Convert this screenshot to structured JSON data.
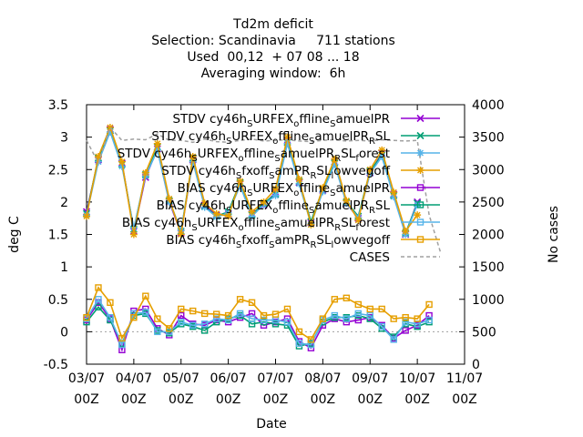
{
  "chart_data": {
    "type": "line",
    "title_lines": [
      "Td2m deficit",
      "Selection: Scandinavia     711 stations",
      "Used  00,12  + 07 08 ... 18",
      "Averaging window:  6h"
    ],
    "xlabel": "Date",
    "ylabel": "deg C",
    "y2label": "No cases",
    "ylim": [
      -0.5,
      3.5
    ],
    "y2lim": [
      0,
      4000
    ],
    "yticks": [
      "-0.5",
      "0",
      "0.5",
      "1",
      "1.5",
      "2",
      "2.5",
      "3",
      "3.5"
    ],
    "y2ticks": [
      "0",
      "500",
      "1000",
      "1500",
      "2000",
      "2500",
      "3000",
      "3500",
      "4000"
    ],
    "xlim": [
      0,
      8
    ],
    "xtick_lines": [
      [
        "03/07",
        "00Z"
      ],
      [
        "04/07",
        "00Z"
      ],
      [
        "05/07",
        "00Z"
      ],
      [
        "06/07",
        "00Z"
      ],
      [
        "07/07",
        "00Z"
      ],
      [
        "08/07",
        "00Z"
      ],
      [
        "09/07",
        "00Z"
      ],
      [
        "10/07",
        "00Z"
      ],
      [
        "11/07",
        "00Z"
      ]
    ],
    "x": [
      0,
      0.25,
      0.5,
      0.75,
      1,
      1.25,
      1.5,
      1.75,
      2,
      2.25,
      2.5,
      2.75,
      3,
      3.25,
      3.5,
      3.75,
      4,
      4.25,
      4.5,
      4.75,
      5,
      5.25,
      5.5,
      5.75,
      6,
      6.25,
      6.5,
      6.75,
      7,
      7.25,
      7.5
    ],
    "legend_position": "top-right",
    "series": [
      {
        "legend": [
          "STDV cy46h",
          "S",
          "URFEX",
          "o",
          "ffline",
          "S",
          "amuelPR"
        ],
        "marker": "x",
        "color": "#9400d3",
        "dash": "solid",
        "values": [
          1.85,
          2.65,
          3.12,
          2.6,
          1.55,
          2.38,
          2.82,
          2.0,
          1.52,
          2.65,
          1.95,
          1.8,
          1.82,
          2.28,
          1.82,
          1.95,
          2.15,
          2.95,
          2.3,
          1.68,
          2.18,
          2.62,
          1.98,
          1.75,
          2.45,
          2.75,
          2.12,
          1.5,
          2.0,
          null,
          null
        ]
      },
      {
        "legend": [
          "STDV cy46h",
          "S",
          "URFEX",
          "o",
          "ffline",
          "S",
          "amuelPR",
          "R",
          "SL"
        ],
        "marker": "x",
        "color": "#009e73",
        "dash": "solid",
        "values": [
          1.82,
          2.68,
          3.1,
          2.58,
          1.58,
          2.42,
          2.85,
          2.02,
          1.55,
          2.68,
          1.93,
          1.78,
          1.85,
          2.3,
          1.8,
          1.98,
          2.12,
          2.92,
          2.32,
          1.7,
          2.2,
          2.6,
          2.0,
          1.78,
          2.48,
          2.72,
          2.1,
          1.52,
          1.98,
          null,
          null
        ]
      },
      {
        "legend": [
          "STDV cy46h",
          "S",
          "URFEX",
          "o",
          "ffline",
          "S",
          "amuelPR",
          "R",
          "SL",
          "f",
          "orest"
        ],
        "marker": "*",
        "color": "#56b4e9",
        "dash": "solid",
        "values": [
          1.8,
          2.62,
          3.08,
          2.55,
          1.6,
          2.4,
          2.8,
          2.0,
          1.56,
          2.62,
          1.92,
          1.77,
          1.83,
          2.25,
          1.78,
          1.96,
          2.1,
          2.9,
          2.28,
          1.66,
          2.16,
          2.58,
          1.98,
          1.76,
          2.44,
          2.7,
          2.08,
          1.5,
          1.96,
          null,
          null
        ]
      },
      {
        "legend": [
          "STDV cy46h",
          "S",
          "fxoff",
          "S",
          "amPR",
          "R",
          "SL",
          "l",
          "owvegoff"
        ],
        "marker": "*",
        "color": "#e69f00",
        "dash": "solid",
        "values": [
          1.78,
          2.7,
          3.15,
          2.62,
          1.5,
          2.45,
          2.9,
          2.05,
          1.5,
          2.7,
          1.98,
          1.82,
          1.78,
          2.32,
          1.85,
          2.0,
          2.2,
          3.0,
          2.35,
          1.65,
          2.22,
          2.66,
          2.02,
          1.72,
          2.5,
          2.8,
          2.15,
          1.55,
          1.8,
          null,
          null
        ]
      },
      {
        "legend": [
          "BIAS cy46h",
          "S",
          "URFEX",
          "o",
          "ffline",
          "S",
          "amuelPR"
        ],
        "marker": "square-open",
        "color": "#9400d3",
        "dash": "solid",
        "values": [
          0.18,
          0.45,
          0.2,
          -0.28,
          0.32,
          0.35,
          0.05,
          -0.05,
          0.25,
          0.12,
          0.1,
          0.18,
          0.15,
          0.22,
          0.28,
          0.1,
          0.15,
          0.2,
          -0.15,
          -0.25,
          0.1,
          0.2,
          0.15,
          0.18,
          0.22,
          0.1,
          -0.1,
          0.02,
          0.1,
          0.25,
          null
        ]
      },
      {
        "legend": [
          "BIAS cy46h",
          "S",
          "URFEX",
          "o",
          "ffline",
          "S",
          "amuelPR",
          "R",
          "SL"
        ],
        "marker": "square-open",
        "color": "#009e73",
        "dash": "solid",
        "values": [
          0.15,
          0.38,
          0.18,
          -0.18,
          0.25,
          0.28,
          0.02,
          -0.02,
          0.12,
          0.08,
          0.02,
          0.15,
          0.2,
          0.25,
          0.12,
          0.15,
          0.12,
          0.1,
          -0.22,
          -0.18,
          0.15,
          0.22,
          0.22,
          0.25,
          0.2,
          0.05,
          -0.08,
          0.12,
          0.08,
          0.15,
          null
        ]
      },
      {
        "legend": [
          "BIAS cy46h",
          "S",
          "URFEX",
          "o",
          "ffline",
          "S",
          "amuelPR",
          "R",
          "SL",
          "f",
          "orest"
        ],
        "marker": "square-open",
        "color": "#56b4e9",
        "dash": "solid",
        "values": [
          0.2,
          0.5,
          0.22,
          -0.2,
          0.28,
          0.3,
          0.0,
          0.0,
          0.15,
          0.1,
          0.12,
          0.2,
          0.18,
          0.28,
          0.2,
          0.18,
          0.18,
          0.15,
          -0.18,
          -0.2,
          0.18,
          0.25,
          0.2,
          0.28,
          0.25,
          0.08,
          -0.12,
          0.15,
          0.12,
          0.18,
          null
        ]
      },
      {
        "legend": [
          "BIAS cy46h",
          "S",
          "fxoff",
          "S",
          "amPR",
          "R",
          "SL",
          "l",
          "owvegoff"
        ],
        "marker": "square-open",
        "color": "#e69f00",
        "dash": "solid",
        "values": [
          0.22,
          0.68,
          0.45,
          -0.1,
          0.22,
          0.55,
          0.2,
          0.05,
          0.35,
          0.32,
          0.28,
          0.27,
          0.25,
          0.5,
          0.45,
          0.25,
          0.27,
          0.35,
          0.0,
          -0.12,
          0.2,
          0.5,
          0.52,
          0.42,
          0.35,
          0.35,
          0.2,
          0.22,
          0.2,
          0.42,
          null
        ]
      },
      {
        "legend": [
          "CASES"
        ],
        "marker": "none",
        "color": "#a0a0a0",
        "dash": "dashed",
        "axis": "y2",
        "values": [
          3450,
          3100,
          3650,
          3450,
          3470,
          3460,
          3550,
          3450,
          3450,
          3420,
          3470,
          3430,
          3420,
          3450,
          3470,
          3440,
          3450,
          3460,
          3440,
          3430,
          3450,
          3460,
          3440,
          3450,
          3440,
          3460,
          3450,
          3440,
          3450,
          2300,
          1700
        ]
      }
    ]
  }
}
